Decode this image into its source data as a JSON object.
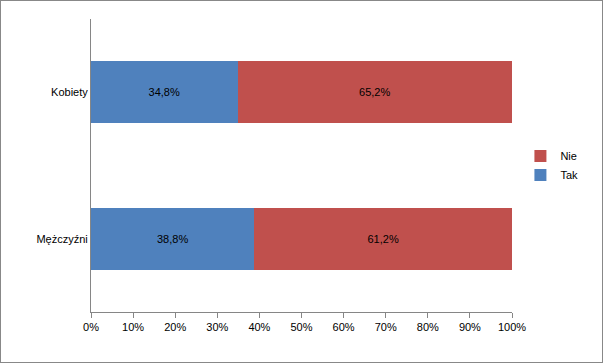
{
  "chart_data": {
    "type": "bar",
    "orientation": "horizontal",
    "stacked": true,
    "data_labels": true,
    "legend": "right",
    "grid": false,
    "categories": [
      "Kobiety",
      "Mężczyźni"
    ],
    "series": [
      {
        "name": "Tak",
        "color": "#4f81bd",
        "values": [
          34.8,
          38.8
        ],
        "value_labels": [
          "34,8%",
          "38,8%"
        ]
      },
      {
        "name": "Nie",
        "color": "#c0504d",
        "values": [
          65.2,
          61.2
        ],
        "value_labels": [
          "65,2%",
          "61,2%"
        ]
      }
    ],
    "xlim": [
      0,
      100
    ],
    "xticks": [
      {
        "value": 0,
        "label": "0%"
      },
      {
        "value": 10,
        "label": "10%"
      },
      {
        "value": 20,
        "label": "20%"
      },
      {
        "value": 30,
        "label": "30%"
      },
      {
        "value": 40,
        "label": "40%"
      },
      {
        "value": 50,
        "label": "50%"
      },
      {
        "value": 60,
        "label": "60%"
      },
      {
        "value": 70,
        "label": "70%"
      },
      {
        "value": 80,
        "label": "80%"
      },
      {
        "value": 90,
        "label": "90%"
      },
      {
        "value": 100,
        "label": "100%"
      }
    ]
  }
}
